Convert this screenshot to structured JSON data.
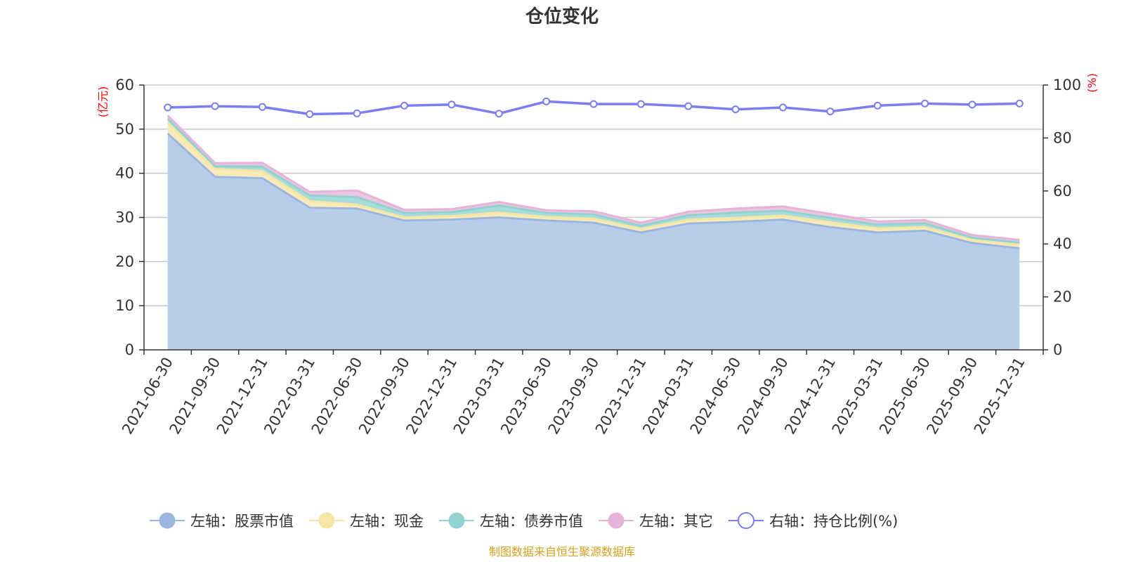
{
  "chart_data": {
    "type": "area",
    "title": "仓位变化",
    "left_axis_unit": "(亿元)",
    "right_axis_unit": "(%)",
    "left_ylim": [
      0,
      60
    ],
    "left_ticks": [
      "0",
      "10",
      "20",
      "30",
      "40",
      "50",
      "60"
    ],
    "right_ylim": [
      0,
      100
    ],
    "right_ticks": [
      "0",
      "20",
      "40",
      "60",
      "80",
      "100"
    ],
    "categories": [
      "2021-06-30",
      "2021-09-30",
      "2021-12-31",
      "2022-03-31",
      "2022-06-30",
      "2022-09-30",
      "2022-12-31",
      "2023-03-31",
      "2023-06-30",
      "2023-09-30",
      "2023-12-31",
      "2024-03-31",
      "2024-06-30",
      "2024-09-30",
      "2024-12-31",
      "2025-03-31",
      "2025-06-30",
      "2025-09-30",
      "2025-12-31"
    ],
    "stacked_series": [
      {
        "name": "左轴：股票市值",
        "color": "#9bb7df",
        "fill": "#b8cdea",
        "values": [
          49.0,
          39.2,
          38.9,
          32.2,
          32.0,
          29.3,
          29.5,
          30.0,
          29.3,
          28.8,
          26.6,
          28.6,
          29.0,
          29.5,
          27.8,
          26.6,
          27.0,
          24.2,
          23.0
        ]
      },
      {
        "name": "左轴：现金",
        "color": "#f6e6a6",
        "fill": "#f8ebb8",
        "values": [
          2.5,
          1.8,
          1.6,
          1.5,
          0.9,
          0.7,
          0.8,
          1.1,
          0.8,
          0.9,
          0.8,
          0.9,
          0.9,
          0.9,
          1.1,
          0.9,
          0.8,
          0.7,
          0.8
        ]
      },
      {
        "name": "左轴：债券市值",
        "color": "#92d3d2",
        "fill": "#a8dcdb",
        "values": [
          0.9,
          0.6,
          1.0,
          1.3,
          1.7,
          1.0,
          0.9,
          1.6,
          0.9,
          1.0,
          0.7,
          1.0,
          1.2,
          1.1,
          1.0,
          0.9,
          0.9,
          0.5,
          0.5
        ]
      },
      {
        "name": "左轴：其它",
        "color": "#e6b4d8",
        "fill": "#edc5e1",
        "values": [
          0.7,
          0.7,
          0.9,
          0.8,
          1.5,
          0.7,
          0.7,
          0.8,
          0.6,
          0.7,
          0.7,
          0.8,
          0.9,
          1.0,
          0.9,
          0.7,
          0.7,
          0.6,
          0.6
        ]
      }
    ],
    "line_series": {
      "name": "右轴：持仓比例(%)",
      "color": "#7b7ef0",
      "values": [
        91.5,
        92.0,
        91.7,
        89.0,
        89.3,
        92.2,
        92.6,
        89.2,
        93.8,
        92.8,
        92.8,
        92.0,
        90.8,
        91.5,
        90.0,
        92.2,
        93.0,
        92.6,
        93.0
      ]
    }
  },
  "footer": {
    "source_text": "制图数据来自恒生聚源数据库"
  }
}
